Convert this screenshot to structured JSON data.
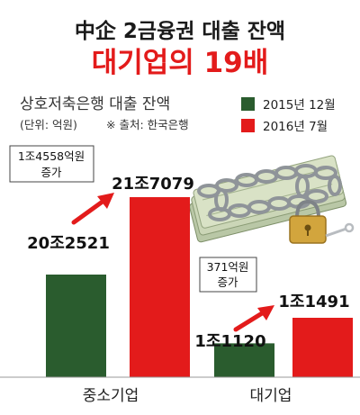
{
  "title": "中企 2금융권 대출 잔액",
  "subtitle": "대기업의 19배",
  "unit_note": "(단위: 억원)",
  "source_note": "※ 출처: 한국은행",
  "colors": {
    "series_2015": "#2a5c2e",
    "series_2016": "#e31b1b",
    "title": "#1a1a1a",
    "subtitle": "#e31b1b",
    "arrow": "#e31b1b"
  },
  "chart_data": {
    "type": "bar",
    "title": "상호저축은행 대출 잔액",
    "ylabel": "",
    "categories": [
      "중소기업",
      "대기업"
    ],
    "series": [
      {
        "name": "2015년 12월",
        "values": [
          202521,
          11120
        ],
        "value_labels": [
          "20조2521",
          "1조1120"
        ]
      },
      {
        "name": "2016년 7월",
        "values": [
          217079,
          11491
        ],
        "value_labels": [
          "21조7079",
          "1조1491"
        ]
      }
    ],
    "annotations": [
      {
        "category": "중소기업",
        "lines": [
          "1조4558억원",
          "증가"
        ]
      },
      {
        "category": "대기업",
        "lines": [
          "371억원",
          "증가"
        ]
      }
    ],
    "scale": "broken"
  }
}
